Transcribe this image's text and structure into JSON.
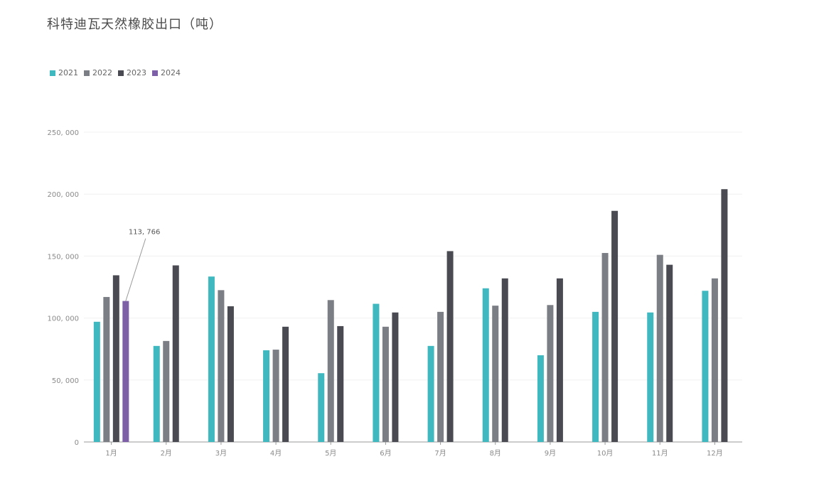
{
  "title": "科特迪瓦天然橡胶出口（吨）",
  "colors": {
    "2021": "#3fb8c0",
    "2022": "#7c7e86",
    "2023": "#4a4b52",
    "2024": "#7c5fa6"
  },
  "chart_data": {
    "type": "bar",
    "title": "科特迪瓦天然橡胶出口（吨）",
    "xlabel": "",
    "ylabel": "",
    "ylim": [
      0,
      250000
    ],
    "yticks": [
      0,
      50000,
      100000,
      150000,
      200000,
      250000
    ],
    "ytick_labels": [
      "0",
      "50, 000",
      "100, 000",
      "150, 000",
      "200, 000",
      "250, 000"
    ],
    "grid": true,
    "legend_position": "top-left",
    "categories": [
      "1月",
      "2月",
      "3月",
      "4月",
      "5月",
      "6月",
      "7月",
      "8月",
      "9月",
      "10月",
      "11月",
      "12月"
    ],
    "series": [
      {
        "name": "2021",
        "values": [
          97000,
          77500,
          133500,
          74000,
          55500,
          111500,
          77500,
          124000,
          70000,
          105000,
          104500,
          122000
        ]
      },
      {
        "name": "2022",
        "values": [
          117000,
          81500,
          122500,
          74500,
          114500,
          93000,
          105000,
          110000,
          110500,
          152500,
          151000,
          132000
        ]
      },
      {
        "name": "2023",
        "values": [
          134500,
          142500,
          109500,
          93000,
          93500,
          104500,
          154000,
          132000,
          132000,
          186500,
          143000,
          204000
        ]
      },
      {
        "name": "2024",
        "values": [
          113766,
          null,
          null,
          null,
          null,
          null,
          null,
          null,
          null,
          null,
          null,
          null
        ]
      }
    ],
    "annotations": [
      {
        "series": "2024",
        "category": "1月",
        "text": "113, 766"
      }
    ]
  }
}
